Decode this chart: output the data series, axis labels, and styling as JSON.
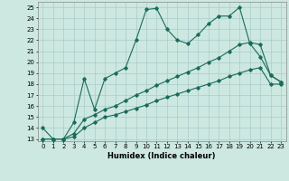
{
  "xlabel": "Humidex (Indice chaleur)",
  "background_color": "#cce8e0",
  "grid_color": "#aacccc",
  "line_color": "#1a6b5a",
  "xlim": [
    -0.5,
    23.5
  ],
  "ylim": [
    12.8,
    25.5
  ],
  "xticks": [
    0,
    1,
    2,
    3,
    4,
    5,
    6,
    7,
    8,
    9,
    10,
    11,
    12,
    13,
    14,
    15,
    16,
    17,
    18,
    19,
    20,
    21,
    22,
    23
  ],
  "yticks": [
    13,
    14,
    15,
    16,
    17,
    18,
    19,
    20,
    21,
    22,
    23,
    24,
    25
  ],
  "series1_x": [
    0,
    1,
    2,
    3,
    4,
    5,
    6,
    7,
    8,
    9,
    10,
    11,
    12,
    13,
    14,
    15,
    16,
    17,
    18,
    19,
    20,
    21,
    22,
    23
  ],
  "series1_y": [
    14,
    13,
    13,
    14.5,
    18.5,
    15.7,
    18.5,
    19,
    19.5,
    22,
    24.8,
    24.9,
    23,
    22,
    21.7,
    22.5,
    23.5,
    24.2,
    24.2,
    25,
    21.7,
    20.5,
    18.8,
    18.2
  ],
  "series2_x": [
    0,
    1,
    2,
    3,
    4,
    5,
    6,
    7,
    8,
    9,
    10,
    11,
    12,
    13,
    14,
    15,
    16,
    17,
    18,
    19,
    20,
    21,
    22,
    23
  ],
  "series2_y": [
    13,
    13,
    13,
    13.5,
    14.8,
    15.2,
    15.7,
    16.0,
    16.5,
    17.0,
    17.4,
    17.9,
    18.3,
    18.7,
    19.1,
    19.5,
    20.0,
    20.4,
    21.0,
    21.6,
    21.8,
    21.6,
    18.8,
    18.2
  ],
  "series3_x": [
    0,
    1,
    2,
    3,
    4,
    5,
    6,
    7,
    8,
    9,
    10,
    11,
    12,
    13,
    14,
    15,
    16,
    17,
    18,
    19,
    20,
    21,
    22,
    23
  ],
  "series3_y": [
    13,
    13,
    13,
    13.2,
    14.0,
    14.5,
    15.0,
    15.2,
    15.5,
    15.8,
    16.1,
    16.5,
    16.8,
    17.1,
    17.4,
    17.7,
    18.0,
    18.3,
    18.7,
    19.0,
    19.3,
    19.5,
    18.0,
    18.0
  ]
}
